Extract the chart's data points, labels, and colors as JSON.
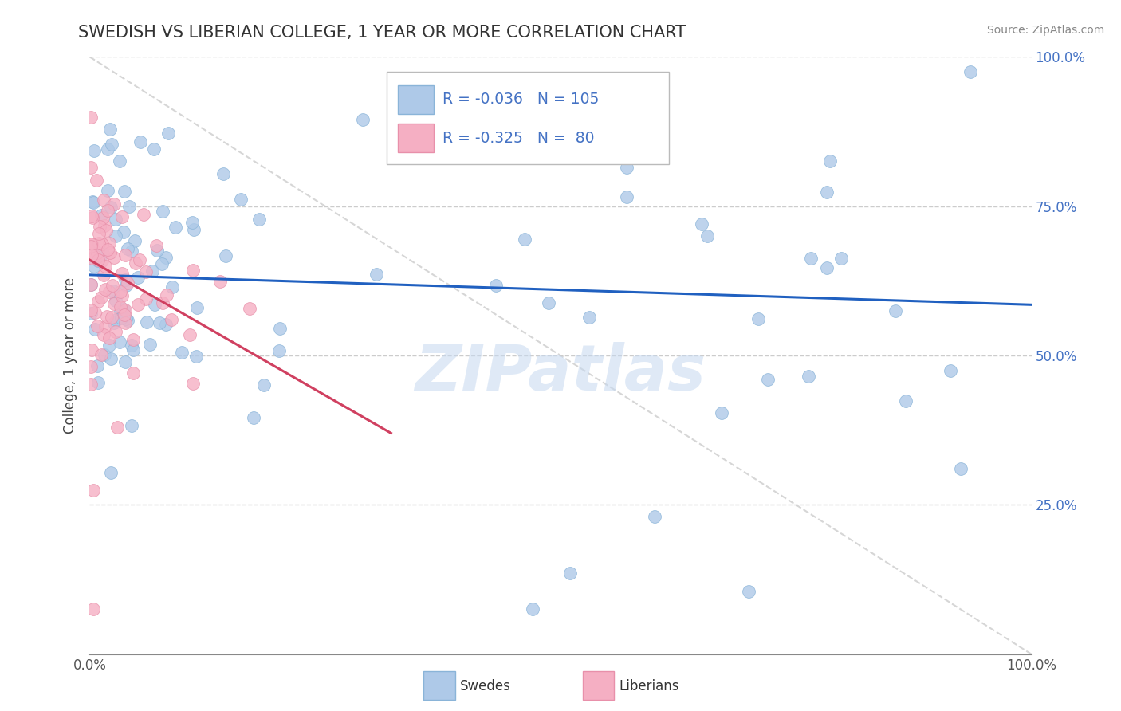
{
  "title": "SWEDISH VS LIBERIAN COLLEGE, 1 YEAR OR MORE CORRELATION CHART",
  "source": "Source: ZipAtlas.com",
  "ylabel": "College, 1 year or more",
  "xlim": [
    0.0,
    1.0
  ],
  "ylim": [
    0.0,
    1.0
  ],
  "swede_color": "#aec9e8",
  "liberian_color": "#f5afc3",
  "swede_edge": "#8ab4d8",
  "liberian_edge": "#e890aa",
  "blue_line_color": "#2060c0",
  "pink_line_color": "#d04060",
  "diagonal_color": "#cccccc",
  "right_tick_color": "#4472c4",
  "swede_R": -0.036,
  "swede_N": 105,
  "liberian_R": -0.325,
  "liberian_N": 80,
  "blue_line_x0": 0.0,
  "blue_line_y0": 0.635,
  "blue_line_x1": 1.0,
  "blue_line_y1": 0.585,
  "pink_line_x0": 0.0,
  "pink_line_y0": 0.66,
  "pink_line_x1": 0.32,
  "pink_line_y1": 0.37
}
